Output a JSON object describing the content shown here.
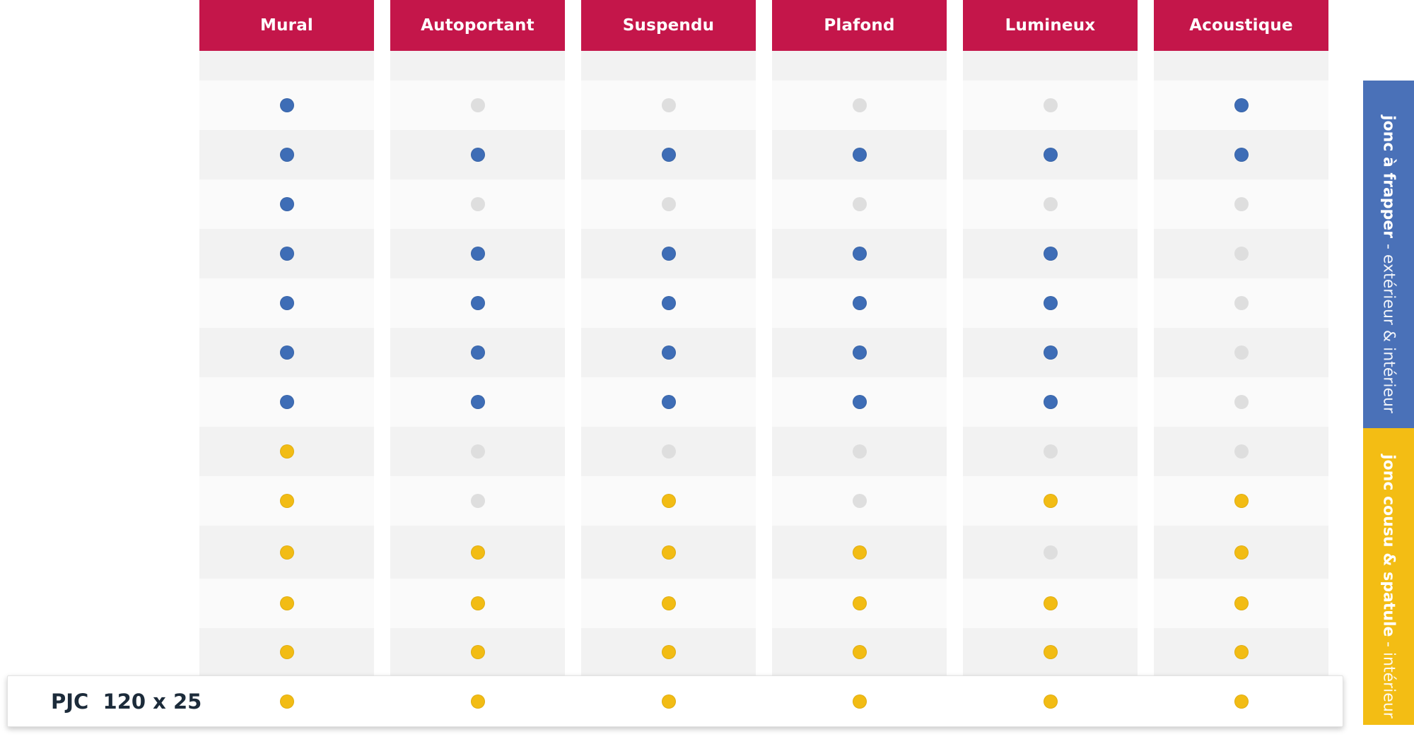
{
  "columns": [
    "Mural",
    "Autoportant",
    "Suspendu",
    "Plafond",
    "Lumineux",
    "Acoustique"
  ],
  "row_label": "PJC  120 x 25",
  "rows": [
    [
      "blue",
      "gray",
      "gray",
      "gray",
      "gray",
      "blue"
    ],
    [
      "blue",
      "blue",
      "blue",
      "blue",
      "blue",
      "blue"
    ],
    [
      "blue",
      "gray",
      "gray",
      "gray",
      "gray",
      "gray"
    ],
    [
      "blue",
      "blue",
      "blue",
      "blue",
      "blue",
      "gray"
    ],
    [
      "blue",
      "blue",
      "blue",
      "blue",
      "blue",
      "gray"
    ],
    [
      "blue",
      "blue",
      "blue",
      "blue",
      "blue",
      "gray"
    ],
    [
      "blue",
      "blue",
      "blue",
      "blue",
      "blue",
      "gray"
    ],
    [
      "yellow",
      "gray",
      "gray",
      "gray",
      "gray",
      "gray"
    ],
    [
      "yellow",
      "gray",
      "yellow",
      "gray",
      "yellow",
      "yellow"
    ],
    [
      "yellow",
      "yellow",
      "yellow",
      "yellow",
      "gray",
      "yellow"
    ],
    [
      "yellow",
      "yellow",
      "yellow",
      "yellow",
      "yellow",
      "yellow"
    ],
    [
      "yellow",
      "yellow",
      "yellow",
      "yellow",
      "yellow",
      "yellow"
    ],
    [
      "yellow",
      "yellow",
      "yellow",
      "yellow",
      "yellow",
      "yellow"
    ]
  ],
  "side_labels": {
    "blue": {
      "bold": "jonc à frapper",
      "light": " - extérieur & intérieur"
    },
    "yellow": {
      "bold": "jonc cousu & spatule",
      "light": " - intérieur"
    }
  },
  "colors": {
    "header": "#c4164a",
    "blue": "#3e6db6",
    "yellow": "#f2bc14",
    "gray": "#dedede",
    "band_blue": "#4a71b8",
    "band_yellow": "#f3bd14",
    "cell_light": "#fafafa",
    "cell_dark": "#f2f2f2"
  }
}
